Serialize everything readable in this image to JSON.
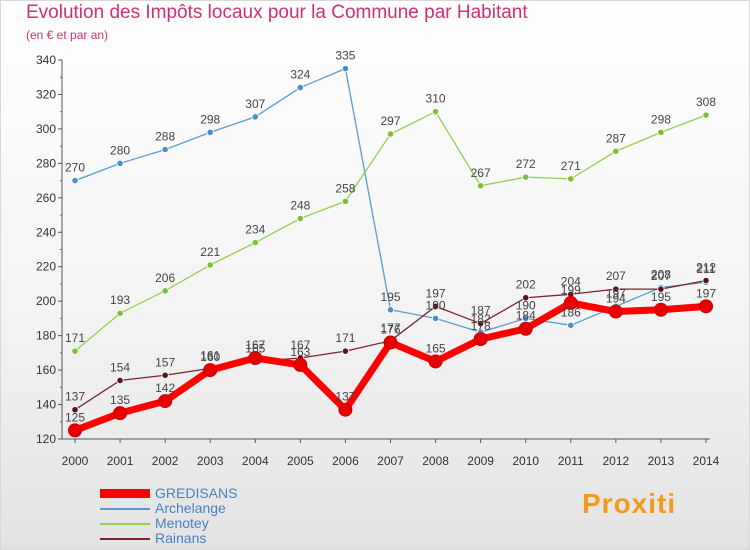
{
  "title": "Evolution des Impôts locaux pour la Commune par Habitant",
  "subtitle": "(en € et par an)",
  "brand": "Proxiti",
  "colors": {
    "title": "#d03070",
    "axis": "#555555",
    "grid": "#e1e1e1"
  },
  "chart_data": {
    "type": "line",
    "title": "Evolution des Impôts locaux pour la Commune par Habitant",
    "subtitle": "(en € et par an)",
    "xlabel": "",
    "ylabel": "",
    "categories": [
      "2000",
      "2001",
      "2002",
      "2003",
      "2004",
      "2005",
      "2006",
      "2007",
      "2008",
      "2009",
      "2010",
      "2011",
      "2012",
      "2013",
      "2014"
    ],
    "ylim": [
      120,
      340
    ],
    "yticks": [
      120,
      140,
      160,
      180,
      200,
      220,
      240,
      260,
      280,
      300,
      320,
      340
    ],
    "grid": false,
    "legend_position": "bottom-left",
    "series": [
      {
        "name": "GREDISANS",
        "color": "#ff0000",
        "marker": "#e60000",
        "highlight": true,
        "values": [
          125,
          135,
          142,
          160,
          167,
          163,
          137,
          176,
          165,
          178,
          184,
          199,
          194,
          195,
          197
        ]
      },
      {
        "name": "Archelange",
        "color": "#5b9bd5",
        "marker": "#4a90c8",
        "highlight": false,
        "values": [
          270,
          280,
          288,
          298,
          307,
          324,
          335,
          195,
          190,
          182,
          190,
          186,
          197,
          208,
          211
        ]
      },
      {
        "name": "Menotey",
        "color": "#92d050",
        "marker": "#7cc03a",
        "highlight": false,
        "values": [
          171,
          193,
          206,
          221,
          234,
          248,
          258,
          297,
          310,
          267,
          272,
          271,
          287,
          298,
          308
        ]
      },
      {
        "name": "Rainans",
        "color": "#7b2430",
        "marker": "#5a121c",
        "highlight": false,
        "values": [
          137,
          154,
          157,
          161,
          165,
          167,
          171,
          177,
          197,
          187,
          202,
          204,
          207,
          207,
          212
        ]
      }
    ]
  }
}
